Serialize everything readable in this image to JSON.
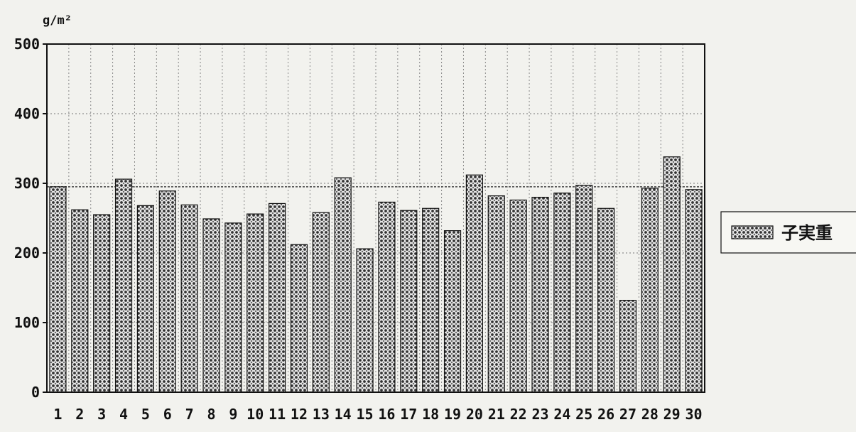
{
  "chart_data": {
    "type": "bar",
    "unit_label": "g/m²",
    "categories": [
      "1",
      "2",
      "3",
      "4",
      "5",
      "6",
      "7",
      "8",
      "9",
      "10",
      "11",
      "12",
      "13",
      "14",
      "15",
      "16",
      "17",
      "18",
      "19",
      "20",
      "21",
      "22",
      "23",
      "24",
      "25",
      "26",
      "27",
      "28",
      "29",
      "30"
    ],
    "series": [
      {
        "name": "子実重",
        "values": [
          295,
          262,
          255,
          306,
          268,
          289,
          269,
          249,
          243,
          256,
          271,
          212,
          258,
          308,
          206,
          273,
          261,
          264,
          232,
          312,
          282,
          276,
          280,
          286,
          297,
          264,
          132,
          293,
          338,
          291
        ]
      }
    ],
    "ylim": [
      0,
      500
    ],
    "yticks": [
      0,
      100,
      200,
      300,
      400,
      500
    ],
    "reference_line": 295,
    "grid": true,
    "legend_position": "right"
  }
}
